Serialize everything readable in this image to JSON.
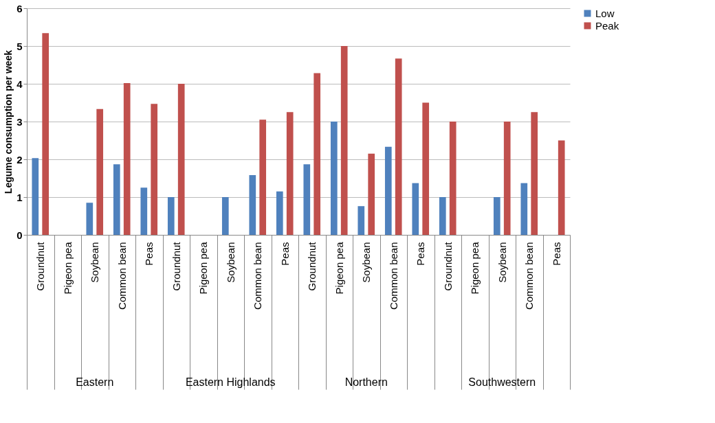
{
  "chart_data": {
    "type": "bar",
    "ylabel": "Legume consumption  per week",
    "categories": [
      "Groundnut",
      "Pigeon pea",
      "Soybean",
      "Common bean",
      "Peas",
      "Groundnut",
      "Pigeon pea",
      "Soybean",
      "Common bean",
      "Peas",
      "Groundnut",
      "Pigeon pea",
      "Soybean",
      "Common bean",
      "Peas",
      "Groundnut",
      "Pigeon pea",
      "Soybean",
      "Common bean",
      "Peas"
    ],
    "annotations": [
      "Eastern",
      "Eastern Highlands",
      "Northern",
      "Southwestern"
    ],
    "series": [
      {
        "name": "Low",
        "color": "#4f81bd",
        "values": [
          2.03,
          null,
          0.85,
          1.87,
          1.25,
          1.0,
          null,
          1.0,
          1.58,
          1.15,
          1.87,
          3.0,
          0.76,
          2.33,
          1.37,
          1.0,
          null,
          1.0,
          1.37,
          null
        ]
      },
      {
        "name": "Peak",
        "color": "#c0504d",
        "values": [
          5.34,
          null,
          3.33,
          4.02,
          3.47,
          4.0,
          null,
          null,
          3.05,
          3.25,
          4.28,
          5.0,
          2.15,
          4.67,
          3.5,
          3.0,
          null,
          3.0,
          3.25,
          2.5
        ]
      }
    ],
    "ylim": [
      0,
      6
    ],
    "yticks": [
      0,
      1,
      2,
      3,
      4,
      5,
      6
    ],
    "grid": "y",
    "legend": "right"
  }
}
